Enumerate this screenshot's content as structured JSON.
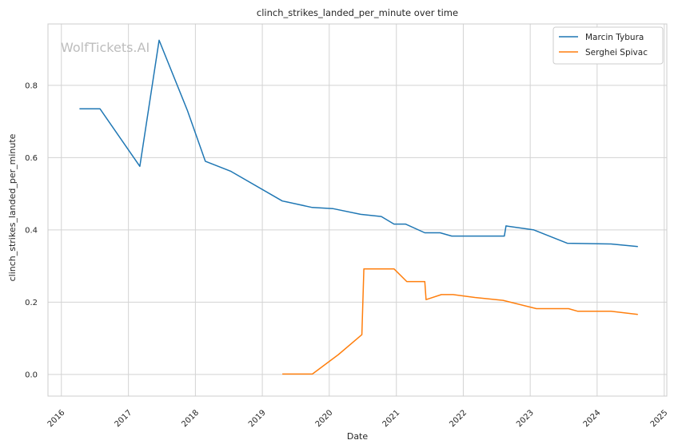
{
  "chart_data": {
    "type": "line",
    "title": "clinch_strikes_landed_per_minute over time",
    "xlabel": "Date",
    "ylabel": "clinch_strikes_landed_per_minute",
    "watermark": "WolfTickets.AI",
    "x_ticks": [
      "2016",
      "2017",
      "2018",
      "2019",
      "2020",
      "2021",
      "2022",
      "2023",
      "2024",
      "2025"
    ],
    "y_ticks": [
      "0.0",
      "0.2",
      "0.4",
      "0.6",
      "0.8"
    ],
    "xlim": [
      "2015-10-20",
      "2025-01-15"
    ],
    "ylim": [
      -0.06,
      0.97
    ],
    "grid": true,
    "legend_position": "top-right",
    "colors": {
      "Marcin Tybura": "#1f77b4",
      "Serghei Spivac": "#ff7f0e"
    },
    "series": [
      {
        "name": "Marcin Tybura",
        "points": [
          [
            "2016-04-09",
            0.735
          ],
          [
            "2016-07-30",
            0.735
          ],
          [
            "2017-03-04",
            0.576
          ],
          [
            "2017-06-17",
            0.925
          ],
          [
            "2017-11-19",
            0.73
          ],
          [
            "2018-02-24",
            0.59
          ],
          [
            "2018-07-14",
            0.562
          ],
          [
            "2019-04-20",
            0.48
          ],
          [
            "2019-05-10",
            0.478
          ],
          [
            "2019-09-30",
            0.462
          ],
          [
            "2020-01-20",
            0.459
          ],
          [
            "2020-06-20",
            0.443
          ],
          [
            "2020-10-11",
            0.437
          ],
          [
            "2020-12-19",
            0.416
          ],
          [
            "2021-02-20",
            0.416
          ],
          [
            "2021-06-05",
            0.392
          ],
          [
            "2021-08-28",
            0.392
          ],
          [
            "2021-10-30",
            0.383
          ],
          [
            "2022-08-13",
            0.383
          ],
          [
            "2022-08-22",
            0.411
          ],
          [
            "2023-01-21",
            0.4
          ],
          [
            "2023-07-22",
            0.363
          ],
          [
            "2024-03-16",
            0.361
          ],
          [
            "2024-08-10",
            0.354
          ]
        ]
      },
      {
        "name": "Serghei Spivac",
        "points": [
          [
            "2019-04-20",
            0.001
          ],
          [
            "2019-10-01",
            0.001
          ],
          [
            "2020-02-20",
            0.055
          ],
          [
            "2020-06-27",
            0.11
          ],
          [
            "2020-07-08",
            0.292
          ],
          [
            "2020-12-19",
            0.292
          ],
          [
            "2021-02-27",
            0.257
          ],
          [
            "2021-06-05",
            0.257
          ],
          [
            "2021-06-12",
            0.207
          ],
          [
            "2021-09-04",
            0.221
          ],
          [
            "2021-11-06",
            0.221
          ],
          [
            "2022-03-05",
            0.213
          ],
          [
            "2022-08-06",
            0.205
          ],
          [
            "2023-02-04",
            0.182
          ],
          [
            "2023-07-29",
            0.182
          ],
          [
            "2023-09-16",
            0.175
          ],
          [
            "2024-03-16",
            0.175
          ],
          [
            "2024-08-10",
            0.166
          ]
        ]
      }
    ]
  }
}
